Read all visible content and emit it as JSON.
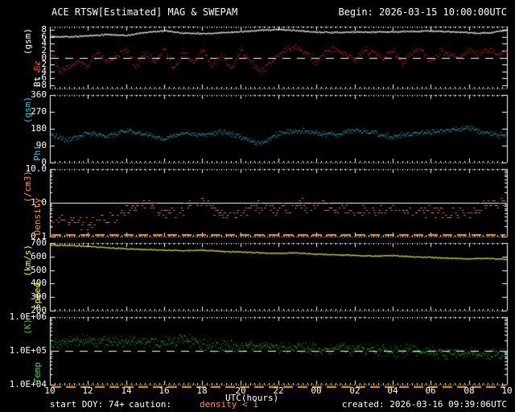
{
  "header": {
    "title": "ACE RTSW[Estimated] MAG & SWEPAM",
    "begin_label": "Begin: 2026-03-15 10:00:00UTC"
  },
  "footer": {
    "start_doy": "start DOY: 74+",
    "caution_label": "caution:",
    "caution_value": "density < 1",
    "caution_color": "#ff9922",
    "created": "created: 2026-03-16 09:39:06UTC"
  },
  "chart_data": {
    "type": "scatter",
    "title": "ACE RTSW[Estimated] MAG & SWEPAM",
    "begin": "2026-03-15 10:00:00UTC",
    "background": "#000000",
    "x": {
      "label": "UTC(hours)",
      "range": [
        10,
        34
      ],
      "tick_values": [
        10,
        12,
        14,
        16,
        18,
        20,
        22,
        24,
        26,
        28,
        30,
        32,
        34
      ],
      "tick_labels": [
        "10",
        "12",
        "14",
        "16",
        "18",
        "20",
        "22",
        "00",
        "02",
        "04",
        "06",
        "08",
        "10"
      ],
      "minor_step": 0.25
    },
    "panels": [
      {
        "id": "mag",
        "scale": "linear",
        "ylim": [
          -9,
          9
        ],
        "ylabel_lines": [
          {
            "parts": [
              {
                "text": "Bt",
                "color": "#ffffff"
              },
              {
                "text": "Bz",
                "color": "#ff3333"
              }
            ]
          },
          {
            "parts": [
              {
                "text": "(gsm)",
                "color": "#ffffff"
              }
            ]
          }
        ],
        "yticks": [
          {
            "value": 8,
            "label": "8"
          },
          {
            "value": 6,
            "label": "6"
          },
          {
            "value": 4,
            "label": "4"
          },
          {
            "value": 2,
            "label": "2"
          },
          {
            "value": 0,
            "label": "0"
          },
          {
            "value": -2,
            "label": "-2"
          },
          {
            "value": -4,
            "label": "-4"
          },
          {
            "value": -6,
            "label": "-6"
          },
          {
            "value": -8,
            "label": "-8"
          }
        ],
        "ref_lines": [
          {
            "value": 0,
            "style": "dashed",
            "color": "#ffffff"
          }
        ],
        "series": [
          {
            "name": "Bt",
            "color": "#ffffff",
            "x_start": 10,
            "x_step": 1,
            "trend": [
              6.3,
              6.1,
              6.4,
              6.8,
              6.5,
              7.4,
              7.9,
              7.2,
              7.0,
              7.3,
              7.6,
              8.0,
              8.3,
              7.9,
              7.5,
              7.4,
              7.5,
              7.5,
              7.6,
              7.7,
              7.8,
              7.6,
              7.3,
              7.2,
              8.1
            ],
            "noise": 0.28,
            "points": 1000,
            "dot": 1
          },
          {
            "name": "Bz",
            "color": "#ff3333",
            "x_start": 10,
            "x_step": 0.5,
            "trend": [
              2.5,
              -4,
              -3,
              -1,
              -2.5,
              1.5,
              -1.5,
              0.5,
              2.5,
              -2.5,
              1.5,
              -1,
              2.5,
              -3.5,
              2,
              -1.5,
              2,
              -2.5,
              1,
              -3,
              2,
              -1,
              -4,
              -2,
              1,
              2.5,
              3,
              1,
              -1.5,
              2,
              2.5,
              1,
              -1,
              2.5,
              1.5,
              0,
              2.5,
              -1.5,
              1.5,
              2.5,
              -1.5,
              2,
              1,
              0,
              2.5,
              1,
              2.5,
              1,
              1.5
            ],
            "noise": 1.3,
            "points": 700,
            "dot": 1
          }
        ]
      },
      {
        "id": "phi",
        "scale": "linear",
        "ylim": [
          0,
          360
        ],
        "ylabel_lines": [
          {
            "parts": [
              {
                "text": "Phi",
                "color": "#33ccee"
              }
            ]
          },
          {
            "parts": [
              {
                "text": "(gsm)",
                "color": "#33ccee"
              }
            ]
          }
        ],
        "yticks": [
          {
            "value": 360,
            "label": "360"
          },
          {
            "value": 270,
            "label": "270"
          },
          {
            "value": 180,
            "label": "180"
          },
          {
            "value": 90,
            "label": "90"
          },
          {
            "value": 0,
            "label": "0"
          }
        ],
        "ref_lines": [],
        "series": [
          {
            "name": "Phi",
            "color": "#33ccee",
            "x_start": 10,
            "x_step": 1,
            "trend": [
              150,
              120,
              160,
              140,
              175,
              150,
              130,
              160,
              150,
              165,
              140,
              100,
              155,
              170,
              160,
              150,
              175,
              160,
              140,
              155,
              165,
              175,
              185,
              160,
              145
            ],
            "noise": 18,
            "points": 750,
            "dot": 1
          }
        ]
      },
      {
        "id": "density",
        "scale": "log",
        "ylim": [
          0.1,
          10
        ],
        "quantize_per_decade": 14,
        "skip_fraction": 0.4,
        "caution_line": {
          "color": "#ff9922",
          "position": "bottom-inside"
        },
        "ylabel_lines": [
          {
            "parts": [
              {
                "text": "Density",
                "color": "#ff9922"
              }
            ]
          },
          {
            "parts": [
              {
                "text": "(/cm3)",
                "color": "#ff9922"
              }
            ]
          }
        ],
        "yticks": [
          {
            "value": 10,
            "label": "10.0"
          },
          {
            "value": 1,
            "label": "1.0"
          },
          {
            "value": 0.1,
            "label": "0.1"
          }
        ],
        "ref_lines": [
          {
            "value": 1,
            "style": "solid",
            "color": "#ffffff"
          }
        ],
        "series": [
          {
            "name": "Density",
            "color": "#ff9922",
            "x_start": 10,
            "x_step": 1,
            "trend": [
              0.3,
              0.3,
              0.25,
              0.35,
              0.6,
              0.9,
              0.5,
              0.7,
              1.0,
              0.45,
              0.55,
              0.75,
              0.65,
              0.8,
              0.85,
              0.75,
              0.6,
              0.7,
              0.65,
              0.55,
              0.6,
              0.45,
              0.5,
              0.8,
              1.1
            ],
            "noise_factor": 1.7,
            "points": 520,
            "dot": 2
          }
        ]
      },
      {
        "id": "speed",
        "scale": "linear",
        "ylim": [
          200,
          700
        ],
        "ylabel_lines": [
          {
            "parts": [
              {
                "text": "Speed",
                "color": "#ffff33"
              }
            ]
          },
          {
            "parts": [
              {
                "text": "(km/s)",
                "color": "#ffff33"
              }
            ]
          }
        ],
        "yticks": [
          {
            "value": 700,
            "label": "700"
          },
          {
            "value": 600,
            "label": "600"
          },
          {
            "value": 500,
            "label": "500"
          },
          {
            "value": 400,
            "label": "400"
          },
          {
            "value": 300,
            "label": "300"
          },
          {
            "value": 200,
            "label": "200"
          }
        ],
        "ref_lines": [],
        "series": [
          {
            "name": "Speed",
            "color": "#ffff33",
            "x_start": 10,
            "x_step": 1,
            "trend": [
              688,
              684,
              678,
              668,
              660,
              655,
              650,
              646,
              650,
              641,
              636,
              630,
              626,
              630,
              621,
              616,
              611,
              606,
              610,
              601,
              596,
              590,
              586,
              590,
              581
            ],
            "noise": 6,
            "points": 850,
            "dot": 1
          }
        ]
      },
      {
        "id": "temp",
        "scale": "log",
        "ylim": [
          10000,
          1000000
        ],
        "caution_line": {
          "color": "#ff9922",
          "position": "bottom-outside"
        },
        "ylabel_lines": [
          {
            "parts": [
              {
                "text": "Temp",
                "color": "#33dd33"
              }
            ]
          },
          {
            "parts": [
              {
                "text": "(K)",
                "color": "#33dd33"
              }
            ]
          }
        ],
        "yticks": [
          {
            "value": 1000000,
            "label": "1.0E+06"
          },
          {
            "value": 100000,
            "label": "1.0E+05"
          },
          {
            "value": 10000,
            "label": "1.0E+04"
          }
        ],
        "ref_lines": [
          {
            "value": 100000,
            "style": "dashed",
            "color": "#ffffff"
          }
        ],
        "series": [
          {
            "name": "Temp",
            "color": "#33dd33",
            "x_start": 10,
            "x_step": 1,
            "trend": [
              160000,
              200000,
              210000,
              180000,
              200000,
              170000,
              190000,
              220000,
              160000,
              140000,
              130000,
              140000,
              120000,
              130000,
              110000,
              120000,
              105000,
              110000,
              95000,
              105000,
              95000,
              85000,
              90000,
              80000,
              90000
            ],
            "noise_factor": 1.6,
            "points": 800,
            "dot": 1
          }
        ]
      }
    ]
  }
}
